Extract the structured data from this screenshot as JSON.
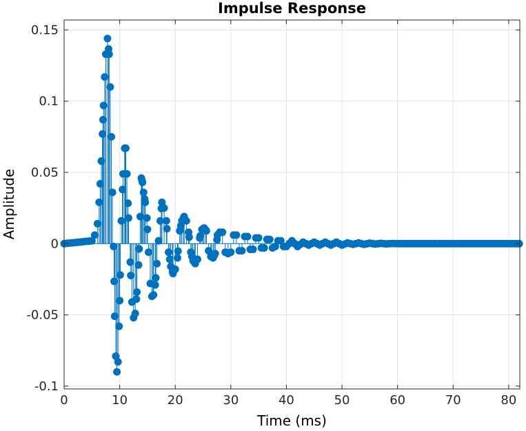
{
  "chart_data": {
    "type": "stem",
    "title": "Impulse Response",
    "xlabel": "Time (ms)",
    "ylabel": "Amplitude",
    "xlim": [
      0,
      82
    ],
    "ylim": [
      -0.102,
      0.157
    ],
    "x_ticks": [
      0,
      10,
      20,
      30,
      40,
      50,
      60,
      70,
      80
    ],
    "x_tick_labels": [
      "0",
      "10",
      "20",
      "30",
      "40",
      "50",
      "60",
      "70",
      "80"
    ],
    "y_ticks": [
      -0.1,
      -0.05,
      0,
      0.05,
      0.1,
      0.15
    ],
    "y_tick_labels": [
      "-0.1",
      "-0.05",
      "0",
      "0.05",
      "0.1",
      "0.15"
    ],
    "grid": true,
    "series_color": "#0072BD",
    "sample_interval_ms": 0.125,
    "points": [
      [
        0,
        0
      ],
      [
        5.0,
        0.002
      ],
      [
        5.5,
        0.006
      ],
      [
        6.0,
        0.014
      ],
      [
        6.3,
        0.029
      ],
      [
        6.5,
        0.042
      ],
      [
        6.7,
        0.058
      ],
      [
        6.9,
        0.077
      ],
      [
        7.1,
        0.097
      ],
      [
        7.3,
        0.117
      ],
      [
        7.5,
        0.133
      ],
      [
        7.8,
        0.144
      ],
      [
        8.1,
        0.133
      ],
      [
        8.3,
        0.11
      ],
      [
        8.5,
        0.075
      ],
      [
        8.7,
        0.036
      ],
      [
        8.9,
        -0.002
      ],
      [
        9.1,
        -0.051
      ],
      [
        9.3,
        -0.079
      ],
      [
        9.5,
        -0.09
      ],
      [
        9.7,
        -0.083
      ],
      [
        9.9,
        -0.058
      ],
      [
        10.1,
        -0.022
      ],
      [
        10.3,
        0.016
      ],
      [
        10.6,
        0.049
      ],
      [
        10.9,
        0.067
      ],
      [
        11.1,
        0.067
      ],
      [
        11.3,
        0.049
      ],
      [
        11.6,
        0.018
      ],
      [
        11.9,
        -0.013
      ],
      [
        12.2,
        -0.041
      ],
      [
        12.5,
        -0.052
      ],
      [
        12.8,
        -0.049
      ],
      [
        13.1,
        -0.034
      ],
      [
        13.4,
        -0.015
      ],
      [
        13.7,
        0.019
      ],
      [
        13.9,
        0.046
      ],
      [
        14.1,
        0.043
      ],
      [
        14.3,
        0.036
      ],
      [
        14.6,
        0.029
      ],
      [
        14.9,
        0.018
      ],
      [
        15.2,
        -0.006
      ],
      [
        15.5,
        -0.028
      ],
      [
        15.8,
        -0.037
      ],
      [
        16.1,
        -0.036
      ],
      [
        16.4,
        -0.029
      ],
      [
        16.7,
        -0.014
      ],
      [
        17.0,
        0.002
      ],
      [
        17.3,
        0.016
      ],
      [
        17.6,
        0.029
      ],
      [
        18.0,
        0.025
      ],
      [
        18.4,
        0.016
      ],
      [
        18.8,
        -0.006
      ],
      [
        19.2,
        -0.016
      ],
      [
        19.6,
        -0.021
      ],
      [
        20.0,
        -0.018
      ],
      [
        20.4,
        -0.01
      ],
      [
        20.8,
        0.009
      ],
      [
        21.2,
        0.016
      ],
      [
        21.6,
        0.019
      ],
      [
        22.0,
        0.016
      ],
      [
        22.4,
        0.008
      ],
      [
        22.8,
        -0.006
      ],
      [
        23.2,
        -0.012
      ],
      [
        23.6,
        -0.014
      ],
      [
        24.0,
        -0.011
      ],
      [
        24.4,
        0.004
      ],
      [
        24.8,
        0.01
      ],
      [
        25.2,
        0.011
      ],
      [
        25.6,
        0.009
      ],
      [
        26.0,
        -0.005
      ],
      [
        26.4,
        -0.009
      ],
      [
        26.8,
        -0.01
      ],
      [
        27.2,
        -0.007
      ],
      [
        27.6,
        0.006
      ],
      [
        28.0,
        0.008
      ],
      [
        28.5,
        0.008
      ],
      [
        29.0,
        -0.006
      ],
      [
        29.5,
        -0.007
      ],
      [
        30.0,
        -0.006
      ],
      [
        30.5,
        0.006
      ],
      [
        31.0,
        0.006
      ],
      [
        31.5,
        -0.005
      ],
      [
        32.0,
        -0.005
      ],
      [
        32.5,
        0.005
      ],
      [
        33.0,
        0.005
      ],
      [
        33.5,
        -0.004
      ],
      [
        34.0,
        -0.004
      ],
      [
        34.5,
        0.004
      ],
      [
        35.0,
        0.004
      ],
      [
        35.5,
        -0.003
      ],
      [
        36.0,
        -0.003
      ],
      [
        36.5,
        0.003
      ],
      [
        37.0,
        0.003
      ],
      [
        37.5,
        -0.003
      ],
      [
        38.0,
        -0.002
      ],
      [
        38.5,
        0.002
      ],
      [
        39.0,
        0.002
      ],
      [
        39.5,
        -0.002
      ],
      [
        40.0,
        -0.002
      ],
      [
        41.0,
        0.002
      ],
      [
        42.0,
        -0.002
      ],
      [
        43.0,
        0.001
      ],
      [
        44.0,
        -0.001
      ],
      [
        45.0,
        0.001
      ],
      [
        46.0,
        -0.001
      ],
      [
        47.0,
        0.001
      ],
      [
        48.0,
        -0.001
      ],
      [
        49.0,
        0.001
      ],
      [
        50.0,
        -0.001
      ],
      [
        51.0,
        0.0005
      ],
      [
        52.0,
        -0.0005
      ],
      [
        53.0,
        0.0005
      ],
      [
        54.0,
        -0.0005
      ],
      [
        55.0,
        0.0003
      ],
      [
        56.0,
        -0.0003
      ],
      [
        57.0,
        0.0002
      ],
      [
        58.0,
        -0.0002
      ],
      [
        59.0,
        0.0001
      ],
      [
        60.0,
        0
      ],
      [
        81.9,
        0
      ]
    ]
  }
}
